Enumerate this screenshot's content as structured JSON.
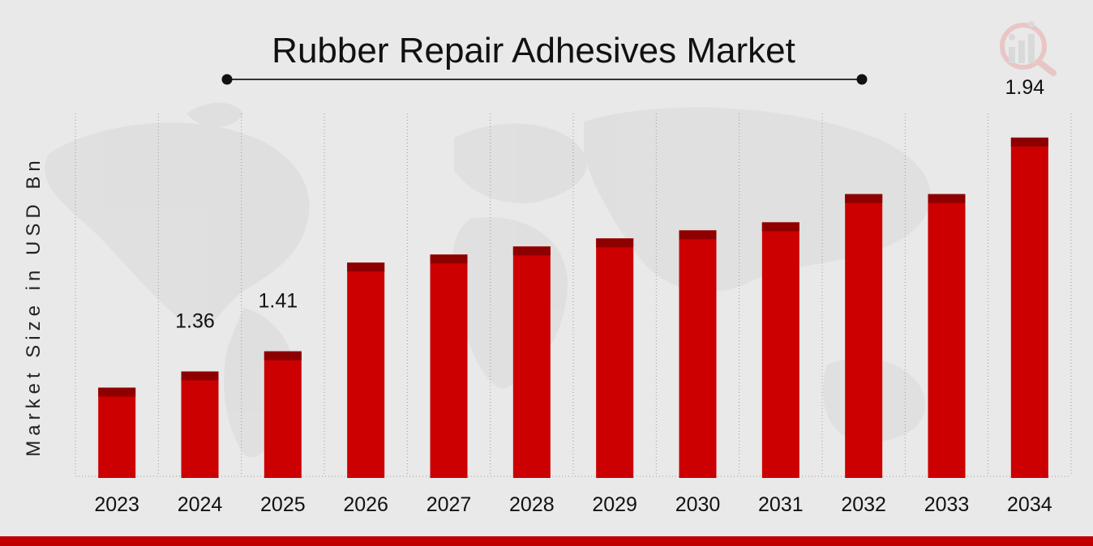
{
  "chart_data": {
    "type": "bar",
    "title": "Rubber Repair Adhesives Market",
    "ylabel": "Market Size in USD Bn",
    "xlabel": "",
    "categories": [
      "2023",
      "2024",
      "2025",
      "2026",
      "2027",
      "2028",
      "2029",
      "2030",
      "2031",
      "2032",
      "2033",
      "2034"
    ],
    "values": [
      1.32,
      1.36,
      1.41,
      1.63,
      1.65,
      1.67,
      1.69,
      1.71,
      1.73,
      1.8,
      1.8,
      1.94
    ],
    "data_labels": {
      "1": "1.36",
      "2": "1.41",
      "11": "1.94"
    },
    "ylim": [
      1.1,
      2.0
    ],
    "grid": "vertical-dotted",
    "legend": "none"
  },
  "colors": {
    "bar": "#cc0000",
    "bar_cap": "#8e0000",
    "accent_bottom": "#c00000",
    "map": "#dcdcdc"
  },
  "logo": {
    "name": "magnifier-chart-logo-icon"
  }
}
